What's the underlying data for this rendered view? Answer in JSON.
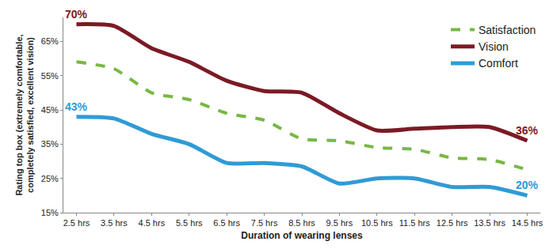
{
  "chart_data": {
    "type": "line",
    "x_label": "Duration of wearing lenses",
    "y_label": [
      "Rating top box (extremely comfortable,",
      "completely satisfied, excellent vision)"
    ],
    "categories": [
      "2.5 hrs",
      "3.5 hrs",
      "4.5 hrs",
      "5.5 hrs",
      "6.5 hrs",
      "7.5 hrs",
      "8.5 hrs",
      "9.5 hrs",
      "10.5 hrs",
      "11.5 hrs",
      "12.5 hrs",
      "13.5 hrs",
      "14.5 hrs"
    ],
    "series": [
      {
        "name": "Satisfaction",
        "color": "#77b843",
        "line_style": "dash",
        "values": [
          59,
          57,
          50,
          48,
          44,
          42,
          36.5,
          36,
          34,
          33.5,
          31,
          30.5,
          27.5
        ]
      },
      {
        "name": "Vision",
        "color": "#7b1a24",
        "line_style": "solid",
        "values": [
          70,
          69.5,
          63,
          59,
          53.5,
          50.5,
          50,
          44,
          39,
          39.5,
          40,
          40,
          36
        ],
        "value_labels": [
          "70%",
          null,
          null,
          null,
          null,
          null,
          null,
          null,
          null,
          null,
          null,
          null,
          "36%"
        ]
      },
      {
        "name": "Comfort",
        "color": "#2f9bd6",
        "line_style": "solid",
        "values": [
          43,
          42.5,
          38,
          35,
          29.5,
          29.5,
          28.5,
          23.5,
          25,
          25,
          22.5,
          22.5,
          20
        ],
        "value_labels": [
          "43%",
          null,
          null,
          null,
          null,
          null,
          null,
          null,
          null,
          null,
          null,
          null,
          "20%"
        ]
      }
    ],
    "ylim": [
      15,
      72
    ],
    "yticks": [
      {
        "value": 15,
        "label": "15%"
      },
      {
        "value": 25,
        "label": "25%"
      },
      {
        "value": 35,
        "label": "35%"
      },
      {
        "value": 45,
        "label": "45%"
      },
      {
        "value": 55,
        "label": "55%"
      },
      {
        "value": 65,
        "label": "65%"
      }
    ],
    "grid": false,
    "legend": "upper right"
  }
}
